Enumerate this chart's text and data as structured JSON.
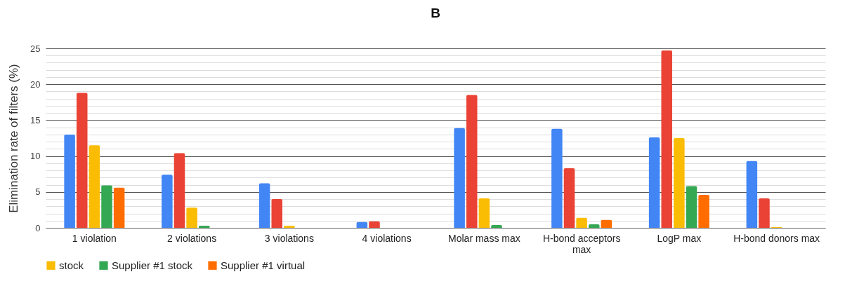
{
  "chart_data": {
    "type": "bar",
    "title": "B",
    "ylabel": "Elimination rate of filters (%)",
    "categories": [
      "1 violation",
      "2 violations",
      "3 violations",
      "4 violations",
      "Molar mass max",
      "H-bond acceptors max",
      "LogP max",
      "H-bond donors max"
    ],
    "series": [
      {
        "color": "#4285f4",
        "values": [
          13.0,
          7.4,
          6.2,
          0.8,
          13.9,
          13.8,
          12.6,
          9.3
        ]
      },
      {
        "color": "#ea4335",
        "values": [
          18.8,
          10.4,
          4.0,
          0.9,
          18.5,
          8.3,
          24.7,
          4.1
        ]
      },
      {
        "name": "stock",
        "color": "#fbbc04",
        "values": [
          11.5,
          2.8,
          0.3,
          0,
          4.1,
          1.4,
          12.5,
          0.1
        ]
      },
      {
        "name": "Supplier #1 stock",
        "color": "#34a853",
        "values": [
          5.9,
          0.3,
          0,
          0,
          0.4,
          0.5,
          5.8,
          0
        ]
      },
      {
        "name": "Supplier #1 virtual",
        "color": "#ff6d01",
        "values": [
          5.6,
          0,
          0,
          0,
          0,
          1.1,
          4.6,
          0
        ]
      }
    ],
    "ylim": [
      0,
      25
    ],
    "yticks": [
      0,
      {
        "value": 1,
        "label": null
      },
      {
        "value": 2,
        "label": null
      },
      {
        "value": 3,
        "label": null
      },
      {
        "value": 4,
        "label": null
      },
      5,
      {
        "value": 6,
        "label": null
      },
      {
        "value": 7,
        "label": null
      },
      {
        "value": 8,
        "label": null
      },
      {
        "value": 9,
        "label": null
      },
      10,
      {
        "value": 11,
        "label": null
      },
      {
        "value": 12,
        "label": null
      },
      {
        "value": 13,
        "label": null
      },
      {
        "value": 14,
        "label": null
      },
      15,
      {
        "value": 16,
        "label": null
      },
      {
        "value": 17,
        "label": null
      },
      {
        "value": 18,
        "label": null
      },
      {
        "value": 19,
        "label": null
      },
      20,
      {
        "value": 21,
        "label": null
      },
      {
        "value": 22,
        "label": null
      },
      {
        "value": 23,
        "label": null
      },
      {
        "value": 24,
        "label": null
      },
      25
    ],
    "grid": true,
    "legend": "bottom"
  }
}
